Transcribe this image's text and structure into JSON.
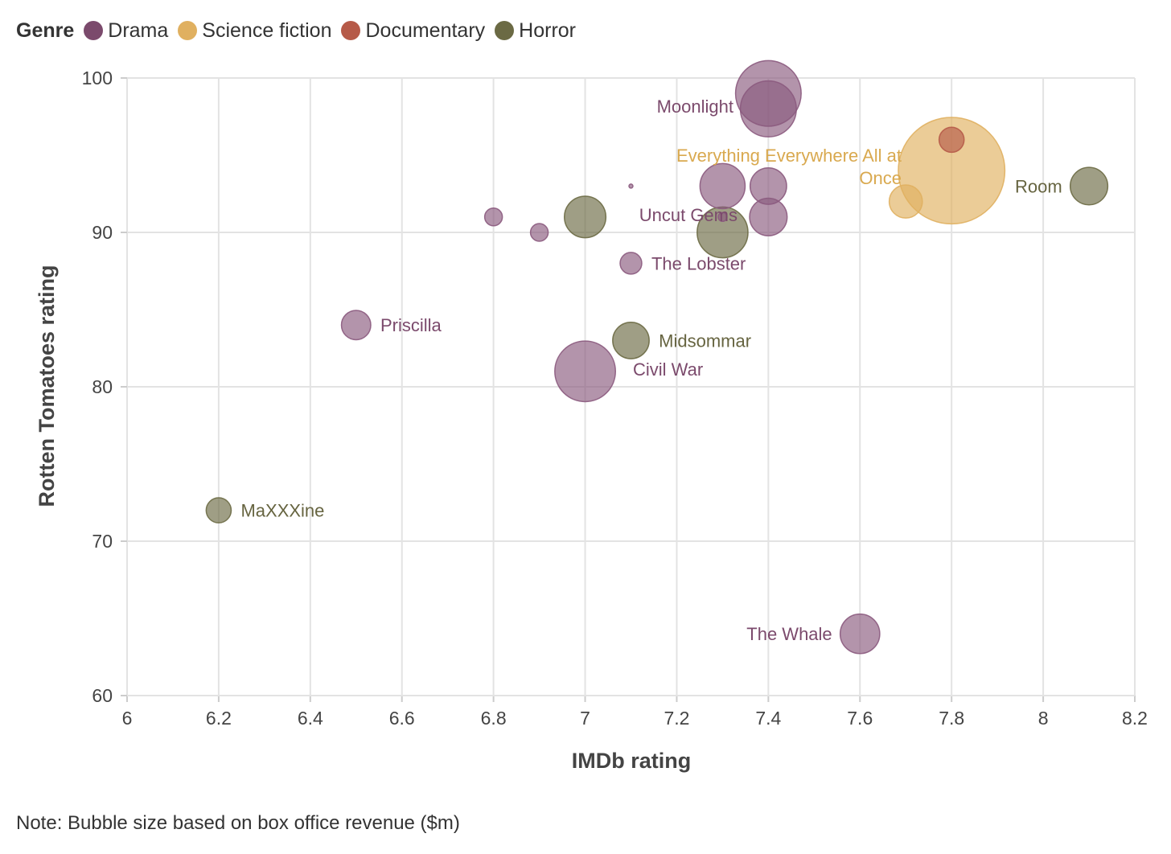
{
  "legend": {
    "title": "Genre",
    "items": [
      {
        "label": "Drama",
        "color": "#7b4a6c"
      },
      {
        "label": "Science fiction",
        "color": "#e0b060"
      },
      {
        "label": "Documentary",
        "color": "#b65a48"
      },
      {
        "label": "Horror",
        "color": "#6b6a44"
      }
    ]
  },
  "note": "Note: Bubble size based on box office revenue ($m)",
  "chart_data": {
    "type": "scatter",
    "title": "",
    "xlabel": "IMDb rating",
    "ylabel": "Rotten Tomatoes rating",
    "xlim": [
      6,
      8.2
    ],
    "ylim": [
      60,
      100
    ],
    "xticks": [
      "6",
      "6.2",
      "6.4",
      "6.6",
      "6.8",
      "7",
      "7.2",
      "7.4",
      "7.6",
      "7.8",
      "8",
      "8.2"
    ],
    "yticks": [
      "60",
      "70",
      "80",
      "90",
      "100"
    ],
    "grid": true,
    "genre_colors": {
      "Drama": {
        "fill": "#8b5a7e",
        "label": "#7b4a6c"
      },
      "Science fiction": {
        "fill": "#e0b060",
        "label": "#d9a94f"
      },
      "Documentary": {
        "fill": "#b65a48",
        "label": "#b65a48"
      },
      "Horror": {
        "fill": "#6b6a44",
        "label": "#666440"
      }
    },
    "points": [
      {
        "x": 7.4,
        "y": 99,
        "genre": "Drama",
        "revenue": 55,
        "label": ""
      },
      {
        "x": 7.4,
        "y": 98,
        "genre": "Drama",
        "revenue": 40,
        "label": "Moonlight",
        "label_pos": "left"
      },
      {
        "x": 7.8,
        "y": 96,
        "genre": "Documentary",
        "revenue": 8,
        "label": ""
      },
      {
        "x": 7.8,
        "y": 94,
        "genre": "Science fiction",
        "revenue": 145,
        "label": "Everything Everywhere All at Once",
        "label_pos": "left-wrap"
      },
      {
        "x": 7.7,
        "y": 92,
        "genre": "Science fiction",
        "revenue": 14,
        "label": ""
      },
      {
        "x": 8.1,
        "y": 93,
        "genre": "Horror",
        "revenue": 18,
        "label": "Room",
        "label_pos": "left"
      },
      {
        "x": 7.1,
        "y": 93,
        "genre": "Drama",
        "revenue": 0.2,
        "label": ""
      },
      {
        "x": 7.3,
        "y": 93,
        "genre": "Drama",
        "revenue": 26,
        "label": ""
      },
      {
        "x": 7.4,
        "y": 93,
        "genre": "Drama",
        "revenue": 17,
        "label": ""
      },
      {
        "x": 7.4,
        "y": 91,
        "genre": "Drama",
        "revenue": 18,
        "label": ""
      },
      {
        "x": 7.3,
        "y": 90,
        "genre": "Horror",
        "revenue": 33,
        "label": ""
      },
      {
        "x": 7.3,
        "y": 91,
        "genre": "Drama",
        "revenue": 1,
        "label": "Uncut Gems",
        "label_pos": "left"
      },
      {
        "x": 6.8,
        "y": 91,
        "genre": "Drama",
        "revenue": 4,
        "label": ""
      },
      {
        "x": 6.9,
        "y": 90,
        "genre": "Drama",
        "revenue": 4,
        "label": ""
      },
      {
        "x": 7.0,
        "y": 91,
        "genre": "Horror",
        "revenue": 22,
        "label": ""
      },
      {
        "x": 7.1,
        "y": 88,
        "genre": "Drama",
        "revenue": 6,
        "label": "The Lobster",
        "label_pos": "right"
      },
      {
        "x": 6.5,
        "y": 84,
        "genre": "Drama",
        "revenue": 11,
        "label": "Priscilla",
        "label_pos": "right"
      },
      {
        "x": 7.1,
        "y": 83,
        "genre": "Horror",
        "revenue": 17,
        "label": "Midsommar",
        "label_pos": "right"
      },
      {
        "x": 7.0,
        "y": 81,
        "genre": "Drama",
        "revenue": 47,
        "label": "Civil War",
        "label_pos": "right"
      },
      {
        "x": 6.2,
        "y": 72,
        "genre": "Horror",
        "revenue": 8,
        "label": "MaXXXine",
        "label_pos": "right"
      },
      {
        "x": 7.6,
        "y": 64,
        "genre": "Drama",
        "revenue": 20,
        "label": "The Whale",
        "label_pos": "left"
      }
    ]
  }
}
